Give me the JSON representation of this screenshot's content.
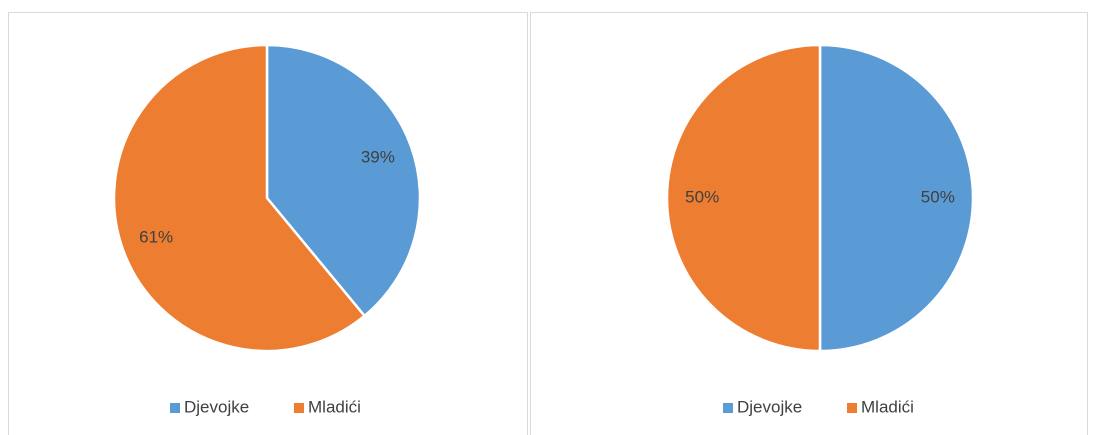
{
  "chart_data": [
    {
      "type": "pie",
      "categories": [
        "Djevojke",
        "Mladići"
      ],
      "values": [
        39,
        61
      ],
      "value_labels": [
        "39%",
        "61%"
      ],
      "colors": [
        "#5b9bd5",
        "#ed7d31"
      ],
      "legend": "bottom"
    },
    {
      "type": "pie",
      "categories": [
        "Djevojke",
        "Mladići"
      ],
      "values": [
        50,
        50
      ],
      "value_labels": [
        "50%",
        "50%"
      ],
      "colors": [
        "#5b9bd5",
        "#ed7d31"
      ],
      "legend": "bottom"
    }
  ]
}
